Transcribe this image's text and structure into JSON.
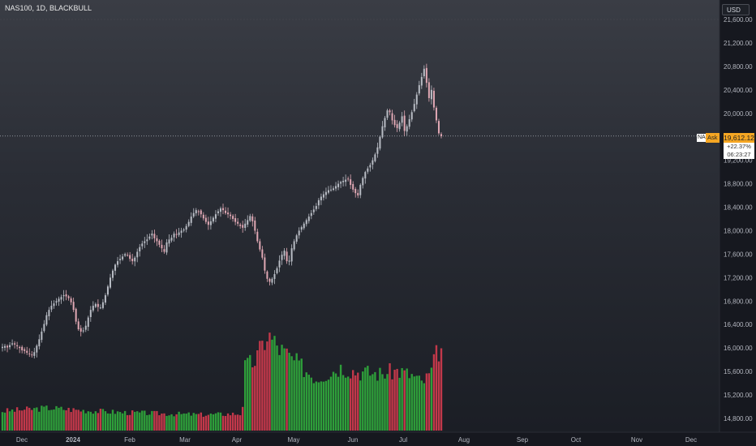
{
  "header": {
    "title": "NAS100, 1D, BLACKBULL",
    "currency": "USD"
  },
  "price_panel": {
    "symbol_short": "NAS",
    "ask_label": "Ask",
    "last_price": "19,612.12",
    "change_pct": "+22.37%",
    "countdown": "06:23:27"
  },
  "colors": {
    "up": "#26a69a",
    "down": "#ef5350",
    "candle_up": "#b8bcc4",
    "candle_down": "#e0a8b4",
    "vol_up": "#2e9e3a",
    "vol_down": "#c2384a",
    "price_tag": "#f5a623"
  },
  "chart_data": {
    "type": "candlestick",
    "title": "NAS100, 1D, BLACKBULL",
    "ylim": [
      14600,
      21850
    ],
    "y_ticks": [
      "14,800.00",
      "15,200.00",
      "15,600.00",
      "16,000.00",
      "16,400.00",
      "16,800.00",
      "17,200.00",
      "17,600.00",
      "18,000.00",
      "18,400.00",
      "18,800.00",
      "19,200.00",
      "19,600.00",
      "20,000.00",
      "20,400.00",
      "20,800.00",
      "21,200.00",
      "21,600.00"
    ],
    "x_ticks": [
      "Dec",
      "2024",
      "Feb",
      "Mar",
      "Apr",
      "May",
      "Jun",
      "Jul",
      "Aug",
      "Sep",
      "Oct",
      "Nov",
      "Dec"
    ],
    "grid": false,
    "close_series": [
      16020,
      16035,
      16010,
      16050,
      16080,
      16060,
      16030,
      16000,
      15960,
      15950,
      15920,
      15900,
      15880,
      15930,
      16040,
      16150,
      16280,
      16410,
      16560,
      16650,
      16720,
      16760,
      16800,
      16840,
      16870,
      16900,
      16880,
      16850,
      16780,
      16650,
      16450,
      16320,
      16280,
      16300,
      16380,
      16520,
      16650,
      16720,
      16750,
      16700,
      16690,
      16780,
      16900,
      17050,
      17200,
      17320,
      17420,
      17480,
      17520,
      17560,
      17600,
      17580,
      17520,
      17480,
      17540,
      17640,
      17720,
      17780,
      17820,
      17850,
      17900,
      17950,
      17870,
      17820,
      17760,
      17700,
      17640,
      17800,
      17850,
      17880,
      17950,
      17930,
      17970,
      18000,
      18020,
      18080,
      18150,
      18240,
      18300,
      18350,
      18330,
      18280,
      18210,
      18150,
      18100,
      18160,
      18220,
      18280,
      18330,
      18380,
      18350,
      18300,
      18280,
      18250,
      18200,
      18150,
      18120,
      18080,
      18050,
      18120,
      18180,
      18250,
      18160,
      18000,
      17820,
      17680,
      17540,
      17320,
      17180,
      17130,
      17180,
      17260,
      17360,
      17490,
      17590,
      17660,
      17480,
      17490,
      17700,
      17820,
      17920,
      18000,
      18060,
      18120,
      18180,
      18240,
      18300,
      18360,
      18420,
      18520,
      18580,
      18620,
      18660,
      18690,
      18700,
      18720,
      18760,
      18800,
      18830,
      18850,
      18870,
      18880,
      18780,
      18700,
      18640,
      18600,
      18780,
      18900,
      19000,
      19060,
      19120,
      19200,
      19300,
      19420,
      19600,
      19780,
      19920,
      20050,
      20020,
      19880,
      19800,
      19750,
      19840,
      19950,
      19700,
      19780,
      19900,
      20020,
      20160,
      20320,
      20480,
      20620,
      20760,
      20520,
      20260,
      20400,
      20100,
      19880,
      19660,
      19612
    ],
    "volume_series": [
      1,
      1,
      1,
      1,
      1,
      1,
      1,
      1,
      1,
      1,
      1,
      1,
      1,
      1,
      1,
      1,
      1,
      1,
      1,
      1,
      1,
      1,
      1,
      1,
      1,
      1,
      1,
      1,
      1,
      1,
      1,
      1,
      1,
      1,
      1,
      1,
      1,
      1,
      1,
      1,
      1,
      1,
      1,
      1,
      1,
      1,
      1,
      1,
      1,
      1,
      1,
      1,
      1,
      1,
      1,
      1,
      1,
      1,
      1,
      1,
      1,
      1,
      1,
      1,
      1,
      1,
      1,
      1,
      1,
      1,
      1,
      1,
      1,
      1,
      1,
      1,
      1,
      1,
      1,
      1,
      1,
      1,
      1,
      1,
      1,
      1,
      1,
      1,
      1,
      1,
      1,
      1,
      1,
      1,
      1,
      1,
      1,
      1,
      1,
      1,
      1,
      1,
      1,
      1,
      1,
      1,
      1,
      1,
      1,
      1,
      1,
      1,
      1,
      1,
      1,
      1,
      1,
      1,
      1,
      1,
      1,
      1,
      1,
      1,
      1,
      1,
      1,
      1,
      1,
      1,
      1,
      1,
      1,
      1,
      1,
      1,
      1,
      1,
      1,
      1,
      1,
      1,
      1,
      1,
      1,
      1,
      1,
      1,
      1,
      1,
      1,
      1,
      1,
      1,
      1,
      1,
      1,
      1,
      1,
      1,
      1,
      1,
      1,
      1,
      1,
      1,
      1,
      1,
      1,
      1,
      1,
      1,
      1,
      1,
      1,
      1,
      1,
      1,
      1,
      1,
      1,
      1,
      1,
      1,
      1,
      1,
      1,
      1,
      1,
      1,
      1,
      1,
      1,
      1,
      1
    ],
    "volume_profile": [
      [
        0,
        0.17
      ],
      [
        60,
        0.2
      ],
      [
        100,
        0.18
      ],
      [
        150,
        0.16
      ],
      [
        200,
        0.15
      ],
      [
        250,
        0.14
      ],
      [
        299,
        0.15
      ],
      [
        300,
        0.55
      ],
      [
        315,
        0.62
      ],
      [
        330,
        0.85
      ],
      [
        345,
        0.72
      ],
      [
        365,
        0.6
      ],
      [
        390,
        0.46
      ],
      [
        420,
        0.56
      ],
      [
        440,
        0.52
      ],
      [
        470,
        0.5
      ],
      [
        490,
        0.53
      ],
      [
        510,
        0.48
      ],
      [
        520,
        0.42
      ],
      [
        530,
        0.49
      ],
      [
        540,
        0.71
      ],
      [
        545,
        0.71
      ]
    ],
    "current_price": 19612.12
  }
}
